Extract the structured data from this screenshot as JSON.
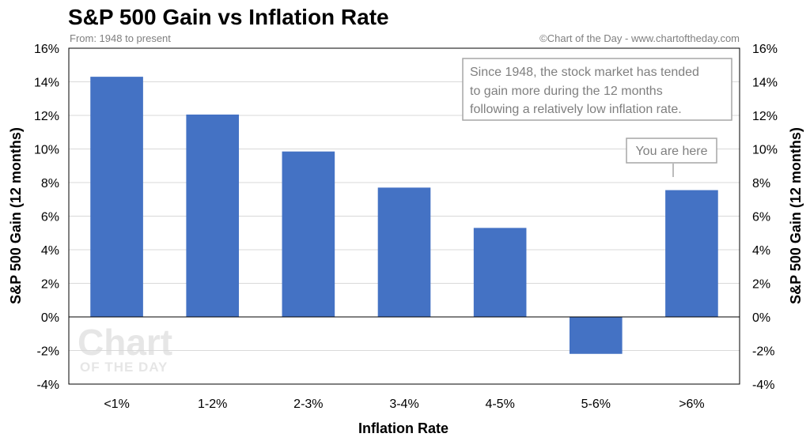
{
  "chart_data": {
    "type": "bar",
    "title": "S&P 500 Gain vs Inflation Rate",
    "subtitle": "From: 1948 to present",
    "credit": "©Chart of the Day - www.chartoftheday.com",
    "xlabel": "Inflation Rate",
    "ylabel": "S&P 500 Gain (12 months)",
    "ylabel_right": "S&P 500 Gain (12 months)",
    "categories": [
      "<1%",
      "1-2%",
      "2-3%",
      "3-4%",
      "4-5%",
      "5-6%",
      ">6%"
    ],
    "values": [
      14.3,
      12.05,
      9.85,
      7.7,
      5.3,
      -2.2,
      7.55
    ],
    "ylim": [
      -4,
      16
    ],
    "yticks": [
      16,
      14,
      12,
      10,
      8,
      6,
      4,
      2,
      0,
      -2,
      -4
    ],
    "ytick_labels": [
      "16%",
      "14%",
      "12%",
      "10%",
      "8%",
      "6%",
      "4%",
      "2%",
      "0%",
      "-2%",
      "-4%"
    ],
    "grid": true,
    "bar_color": "#4472c4",
    "annotation_lines": [
      "Since 1948, the stock market has tended",
      "to gain more during the 12 months",
      "following a relatively low inflation rate."
    ],
    "callout": "You are here",
    "watermark": [
      "Chart",
      "OF THE DAY"
    ]
  }
}
